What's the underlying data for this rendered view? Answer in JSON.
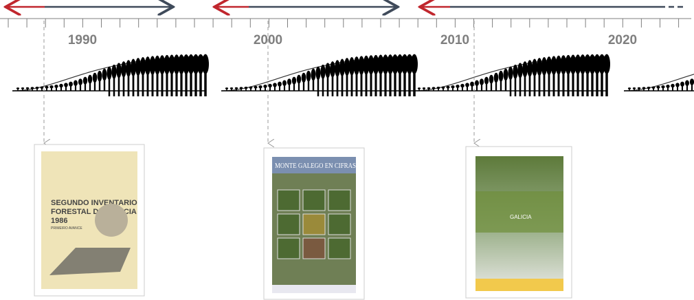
{
  "timeline": {
    "years": [
      "1990",
      "2000",
      "2010",
      "2020"
    ]
  },
  "covers": [
    {
      "lines": [
        "SEGUNDO INVENTARIO",
        "FORESTAL DE GALICIA",
        "1986"
      ],
      "subtitle": "PRIMEIRO AVANCE"
    },
    {
      "title": "MONTE GALEGO EN CIFRAS"
    },
    {
      "title": "GALICIA"
    }
  ]
}
